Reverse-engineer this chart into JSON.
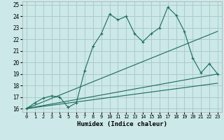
{
  "xlabel": "Humidex (Indice chaleur)",
  "bg_color": "#cce8e8",
  "grid_color": "#aacccc",
  "line_color": "#1a6b5a",
  "xlim": [
    -0.5,
    23.5
  ],
  "ylim": [
    15.7,
    25.3
  ],
  "xticks": [
    0,
    1,
    2,
    3,
    4,
    5,
    6,
    7,
    8,
    9,
    10,
    11,
    12,
    13,
    14,
    15,
    16,
    17,
    18,
    19,
    20,
    21,
    22,
    23
  ],
  "yticks": [
    16,
    17,
    18,
    19,
    20,
    21,
    22,
    23,
    24,
    25
  ],
  "line1_x": [
    0,
    1,
    2,
    3,
    4,
    5,
    6,
    7,
    8,
    9,
    10,
    11,
    12,
    13,
    14,
    15,
    16,
    17,
    18,
    19,
    20,
    21,
    22,
    23
  ],
  "line1_y": [
    16.0,
    16.5,
    16.9,
    17.1,
    17.0,
    16.1,
    16.5,
    19.3,
    21.4,
    22.5,
    24.2,
    23.7,
    24.0,
    22.5,
    21.8,
    22.5,
    23.0,
    24.8,
    24.1,
    22.7,
    20.4,
    19.1,
    19.9,
    19.0
  ],
  "line2_x": [
    0,
    23
  ],
  "line2_y": [
    16.0,
    22.7
  ],
  "line3_x": [
    0,
    23
  ],
  "line3_y": [
    16.0,
    19.0
  ],
  "line4_x": [
    0,
    23
  ],
  "line4_y": [
    16.0,
    18.2
  ]
}
